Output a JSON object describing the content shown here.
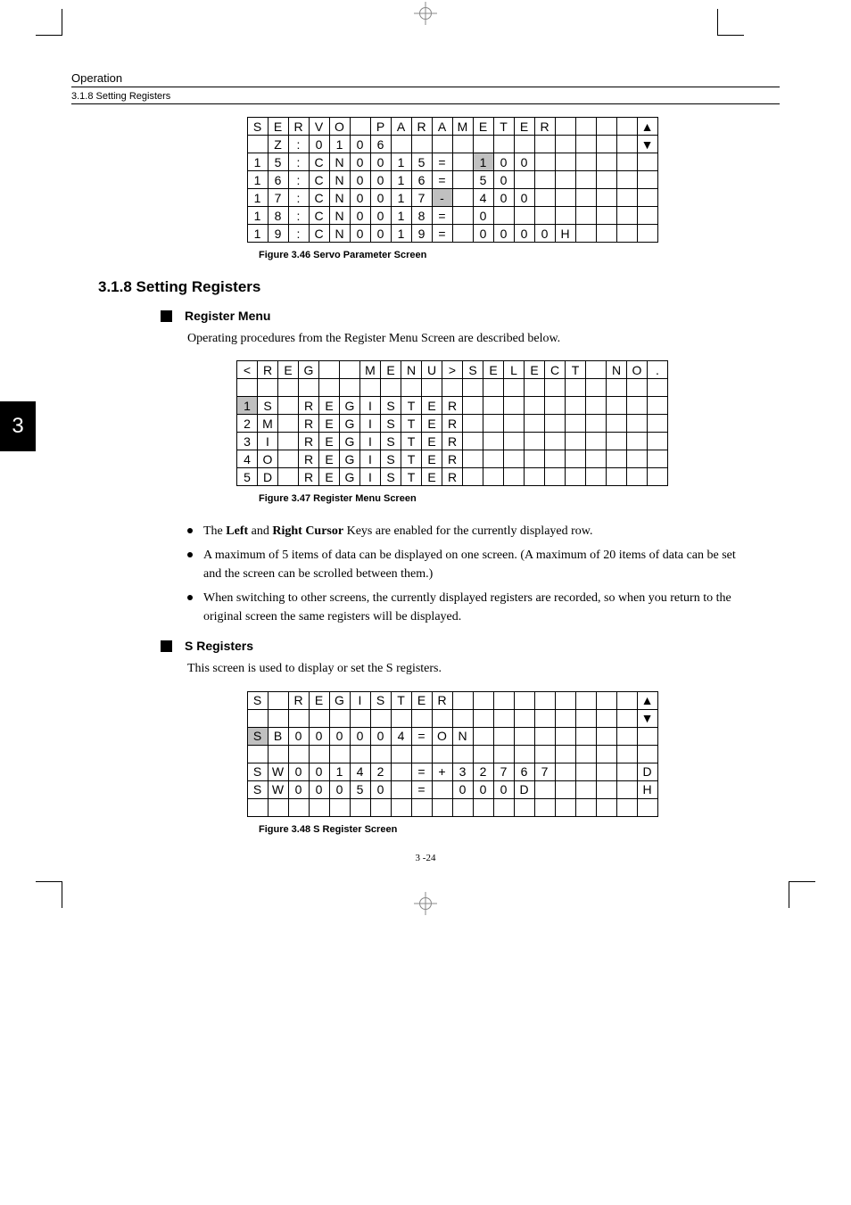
{
  "header": {
    "title": "Operation",
    "subtitle": "3.1.8 Setting Registers"
  },
  "chapter_tab": "3",
  "fig346": {
    "caption": "Figure 3.46  Servo Parameter Screen",
    "rows": [
      [
        "S",
        "E",
        "R",
        "V",
        "O",
        "",
        "P",
        "A",
        "R",
        "A",
        "M",
        "E",
        "T",
        "E",
        "R",
        "",
        "",
        "",
        "",
        "▲"
      ],
      [
        "",
        "Z",
        ":",
        "0",
        "1",
        "0",
        "6",
        "",
        "",
        "",
        "",
        "",
        "",
        "",
        "",
        "",
        "",
        "",
        "",
        "▼"
      ],
      [
        "1",
        "5",
        ":",
        "C",
        "N",
        "0",
        "0",
        "1",
        "5",
        "=",
        "",
        "1_",
        "0",
        "0",
        "",
        "",
        "",
        "",
        "",
        ""
      ],
      [
        "1",
        "6",
        ":",
        "C",
        "N",
        "0",
        "0",
        "1",
        "6",
        "=",
        "",
        "5",
        "0",
        "",
        "",
        "",
        "",
        "",
        "",
        ""
      ],
      [
        "1",
        "7",
        ":",
        "C",
        "N",
        "0",
        "0",
        "1",
        "7",
        "-_",
        "",
        "4",
        "0",
        "0",
        "",
        "",
        "",
        "",
        "",
        ""
      ],
      [
        "1",
        "8",
        ":",
        "C",
        "N",
        "0",
        "0",
        "1",
        "8",
        "=",
        "",
        "0",
        "",
        "",
        "",
        "",
        "",
        "",
        "",
        ""
      ],
      [
        "1",
        "9",
        ":",
        "C",
        "N",
        "0",
        "0",
        "1",
        "9",
        "=",
        "",
        "0",
        "0",
        "0",
        "0",
        "H",
        "",
        "",
        "",
        ""
      ]
    ]
  },
  "section": {
    "number": "3.1.8",
    "title": "Setting Registers"
  },
  "register_menu": {
    "heading": "Register Menu",
    "intro": "Operating procedures from the Register Menu Screen are described below."
  },
  "fig347": {
    "caption": "Figure 3.47  Register Menu Screen",
    "rows": [
      [
        "<",
        "R",
        "E",
        "G",
        "",
        "",
        "M",
        "E",
        "N",
        "U",
        ">",
        "S",
        "E",
        "L",
        "E",
        "C",
        "T",
        "",
        "N",
        "O",
        "."
      ],
      [
        "",
        "",
        "",
        "",
        "",
        "",
        "",
        "",
        "",
        "",
        "",
        "",
        "",
        "",
        "",
        "",
        "",
        "",
        "",
        "",
        ""
      ],
      [
        "1_",
        "S",
        "",
        "R",
        "E",
        "G",
        "I",
        "S",
        "T",
        "E",
        "R",
        "",
        "",
        "",
        "",
        "",
        "",
        "",
        "",
        "",
        ""
      ],
      [
        "2",
        "M",
        "",
        "R",
        "E",
        "G",
        "I",
        "S",
        "T",
        "E",
        "R",
        "",
        "",
        "",
        "",
        "",
        "",
        "",
        "",
        "",
        ""
      ],
      [
        "3",
        "I",
        "",
        "R",
        "E",
        "G",
        "I",
        "S",
        "T",
        "E",
        "R",
        "",
        "",
        "",
        "",
        "",
        "",
        "",
        "",
        "",
        ""
      ],
      [
        "4",
        "O",
        "",
        "R",
        "E",
        "G",
        "I",
        "S",
        "T",
        "E",
        "R",
        "",
        "",
        "",
        "",
        "",
        "",
        "",
        "",
        "",
        ""
      ],
      [
        "5",
        "D",
        "",
        "R",
        "E",
        "G",
        "I",
        "S",
        "T",
        "E",
        "R",
        "",
        "",
        "",
        "",
        "",
        "",
        "",
        "",
        "",
        ""
      ]
    ]
  },
  "bullets": [
    {
      "pre": "The ",
      "b1": "Left",
      "mid": " and ",
      "b2": "Right Cursor",
      "post": " Keys are enabled for the currently displayed row."
    },
    {
      "text": "A maximum of 5 items of data can be displayed on one screen. (A maximum of 20 items of data can be set and the screen can be scrolled between them.)"
    },
    {
      "text": "When switching to other screens, the currently displayed registers are recorded, so when you return to the original screen the same registers will be displayed."
    }
  ],
  "s_registers": {
    "heading": "S Registers",
    "intro": "This screen is used to display or set the S registers."
  },
  "fig348": {
    "caption": "Figure 3.48  S Register Screen",
    "rows": [
      [
        "S",
        "",
        "R",
        "E",
        "G",
        "I",
        "S",
        "T",
        "E",
        "R",
        "",
        "",
        "",
        "",
        "",
        "",
        "",
        "",
        "",
        "▲"
      ],
      [
        "",
        "",
        "",
        "",
        "",
        "",
        "",
        "",
        "",
        "",
        "",
        "",
        "",
        "",
        "",
        "",
        "",
        "",
        "",
        "▼"
      ],
      [
        "S_",
        "B",
        "0",
        "0",
        "0",
        "0",
        "0",
        "4",
        "=",
        "O",
        "N",
        "",
        "",
        "",
        "",
        "",
        "",
        "",
        "",
        ""
      ],
      [
        "",
        "",
        "",
        "",
        "",
        "",
        "",
        "",
        "",
        "",
        "",
        "",
        "",
        "",
        "",
        "",
        "",
        "",
        "",
        ""
      ],
      [
        "S",
        "W",
        "0",
        "0",
        "1",
        "4",
        "2",
        "",
        "=",
        "+",
        "3",
        "2",
        "7",
        "6",
        "7",
        "",
        "",
        "",
        "",
        "D"
      ],
      [
        "S",
        "W",
        "0",
        "0",
        "0",
        "5",
        "0",
        "",
        "=",
        "",
        "0",
        "0",
        "0",
        "D",
        "",
        "",
        "",
        "",
        "",
        "H"
      ],
      [
        "",
        "",
        "",
        "",
        "",
        "",
        "",
        "",
        "",
        "",
        "",
        "",
        "",
        "",
        "",
        "",
        "",
        "",
        "",
        ""
      ]
    ]
  },
  "page_number": "3 -24"
}
